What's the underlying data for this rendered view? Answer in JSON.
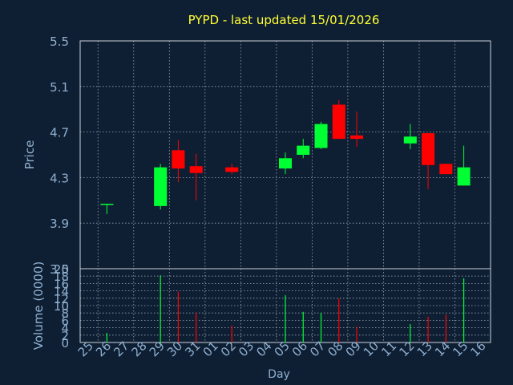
{
  "title": "PYPD - last updated 15/01/2026",
  "colors": {
    "background": "#0f1f33",
    "title": "#ffff33",
    "axis_text": "#8fb0d0",
    "grid": "#9aa7b5",
    "up": "#00ff33",
    "down": "#ff0000"
  },
  "chart_data": [
    {
      "type": "candlestick",
      "ylabel": "Price",
      "ylim": [
        3.5,
        5.5
      ],
      "yticks": [
        "3.5",
        "3.9",
        "4.3",
        "4.7",
        "5.1",
        "5.5"
      ],
      "grid": true,
      "x": [
        "25",
        "26",
        "27",
        "28",
        "29",
        "30",
        "31",
        "01",
        "02",
        "03",
        "04",
        "05",
        "06",
        "07",
        "08",
        "09",
        "10",
        "11",
        "12",
        "13",
        "14",
        "15",
        "16"
      ],
      "candles": [
        {
          "day": "26",
          "open": 4.06,
          "high": 4.07,
          "low": 3.98,
          "close": 4.07
        },
        {
          "day": "29",
          "open": 4.05,
          "high": 4.42,
          "low": 4.02,
          "close": 4.39
        },
        {
          "day": "30",
          "open": 4.54,
          "high": 4.63,
          "low": 4.26,
          "close": 4.38
        },
        {
          "day": "31",
          "open": 4.4,
          "high": 4.51,
          "low": 4.1,
          "close": 4.34
        },
        {
          "day": "02",
          "open": 4.39,
          "high": 4.42,
          "low": 4.33,
          "close": 4.35
        },
        {
          "day": "05",
          "open": 4.38,
          "high": 4.52,
          "low": 4.33,
          "close": 4.47
        },
        {
          "day": "06",
          "open": 4.5,
          "high": 4.64,
          "low": 4.47,
          "close": 4.58
        },
        {
          "day": "07",
          "open": 4.56,
          "high": 4.79,
          "low": 4.55,
          "close": 4.77
        },
        {
          "day": "08",
          "open": 4.94,
          "high": 4.98,
          "low": 4.64,
          "close": 4.64
        },
        {
          "day": "09",
          "open": 4.67,
          "high": 4.88,
          "low": 4.57,
          "close": 4.64
        },
        {
          "day": "12",
          "open": 4.6,
          "high": 4.77,
          "low": 4.55,
          "close": 4.66
        },
        {
          "day": "13",
          "open": 4.69,
          "high": 4.69,
          "low": 4.2,
          "close": 4.41
        },
        {
          "day": "14",
          "open": 4.42,
          "high": 4.42,
          "low": 4.33,
          "close": 4.33
        },
        {
          "day": "15",
          "open": 4.23,
          "high": 4.58,
          "low": 4.23,
          "close": 4.39
        }
      ]
    },
    {
      "type": "bar",
      "ylabel": "Volume (0000)",
      "xlabel": "Day",
      "ylim": [
        0,
        20
      ],
      "yticks": [
        "0",
        "2",
        "4",
        "6",
        "8",
        "10",
        "12",
        "14",
        "16",
        "18",
        "20"
      ],
      "grid": true,
      "categories": [
        "26",
        "29",
        "30",
        "31",
        "02",
        "05",
        "06",
        "07",
        "08",
        "09",
        "12",
        "13",
        "14",
        "15"
      ],
      "values": [
        2.6,
        18.2,
        13.8,
        8.0,
        4.6,
        12.8,
        8.3,
        8.0,
        12.0,
        4.3,
        5.0,
        7.0,
        7.6,
        17.4
      ],
      "direction": [
        "up",
        "up",
        "down",
        "down",
        "down",
        "up",
        "up",
        "up",
        "down",
        "down",
        "up",
        "down",
        "down",
        "up"
      ]
    }
  ]
}
